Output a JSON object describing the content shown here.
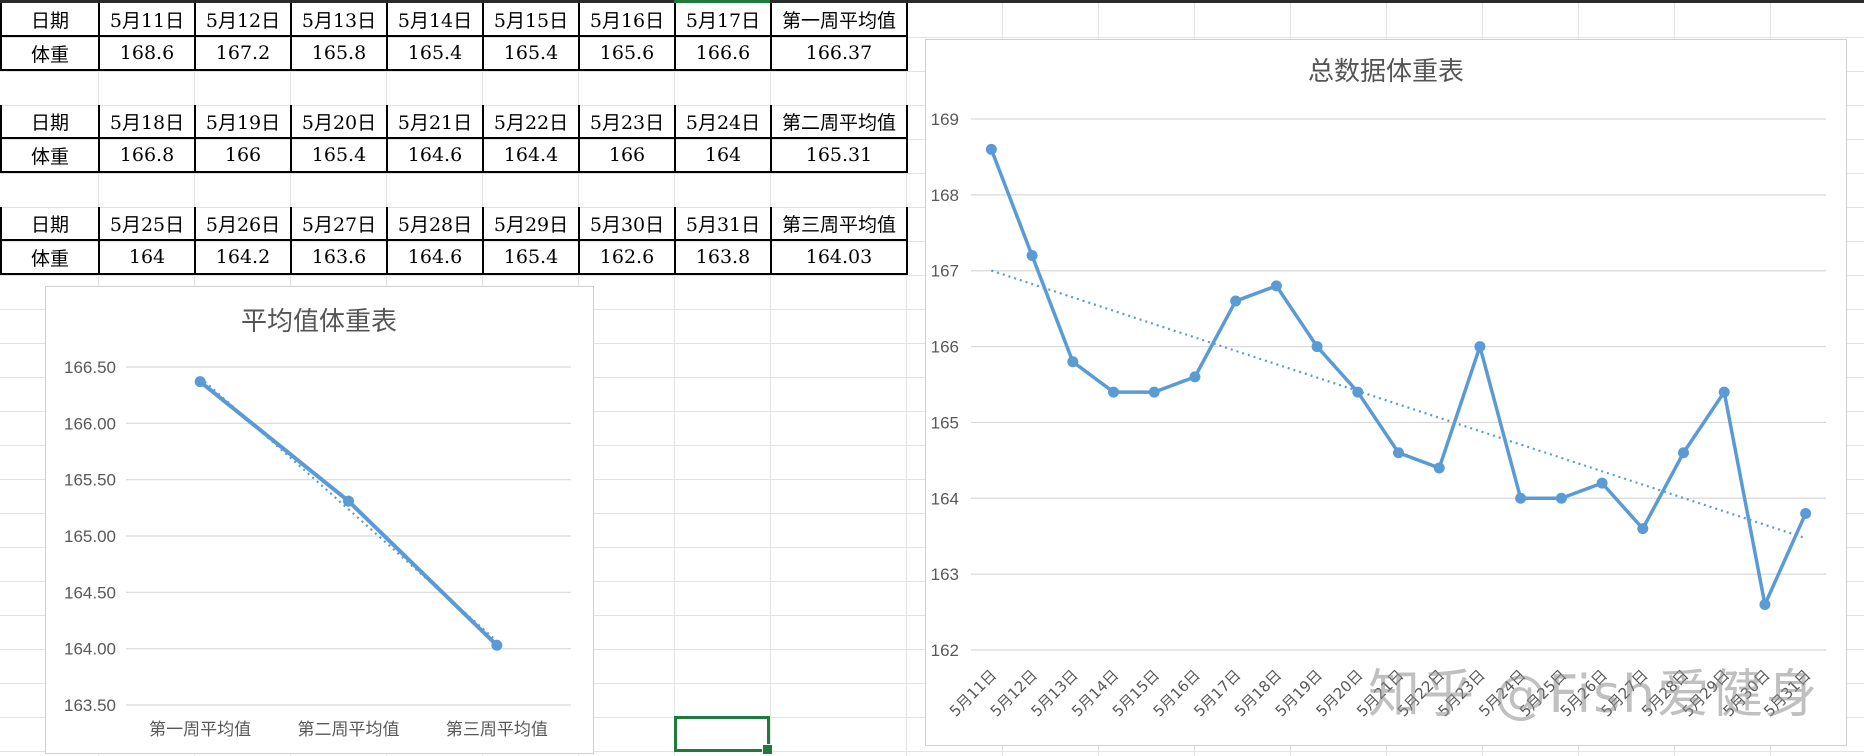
{
  "weeks": [
    {
      "date_label": "日期",
      "weight_label": "体重",
      "dates": [
        "5月11日",
        "5月12日",
        "5月13日",
        "5月14日",
        "5月15日",
        "5月16日",
        "5月17日"
      ],
      "avg_label": "第一周平均值",
      "weights": [
        "168.6",
        "167.2",
        "165.8",
        "165.4",
        "165.4",
        "165.6",
        "166.6"
      ],
      "avg_value": "166.37"
    },
    {
      "date_label": "日期",
      "weight_label": "体重",
      "dates": [
        "5月18日",
        "5月19日",
        "5月20日",
        "5月21日",
        "5月22日",
        "5月23日",
        "5月24日"
      ],
      "avg_label": "第二周平均值",
      "weights": [
        "166.8",
        "166",
        "165.4",
        "164.6",
        "164.4",
        "166",
        "164"
      ],
      "avg_value": "165.31"
    },
    {
      "date_label": "日期",
      "weight_label": "体重",
      "dates": [
        "5月25日",
        "5月26日",
        "5月27日",
        "5月28日",
        "5月29日",
        "5月30日",
        "5月31日"
      ],
      "avg_label": "第三周平均值",
      "weights": [
        "164",
        "164.2",
        "163.6",
        "164.6",
        "165.4",
        "162.6",
        "163.8"
      ],
      "avg_value": "164.03"
    }
  ],
  "chart_data": [
    {
      "type": "line",
      "title": "平均值体重表",
      "categories": [
        "第一周平均值",
        "第二周平均值",
        "第三周平均值"
      ],
      "values": [
        166.37,
        165.31,
        164.03
      ],
      "ylim": [
        163.5,
        166.5
      ],
      "yticks": [
        "163.50",
        "164.00",
        "164.50",
        "165.00",
        "165.50",
        "166.00",
        "166.50"
      ],
      "ytick_values": [
        163.5,
        164.0,
        164.5,
        165.0,
        165.5,
        166.0,
        166.5
      ],
      "trendline": "linear, dotted",
      "grid": true,
      "legend": "none",
      "color": "#5b9bd5"
    },
    {
      "type": "line",
      "title": "总数据体重表",
      "categories": [
        "5月11日",
        "5月12日",
        "5月13日",
        "5月14日",
        "5月15日",
        "5月16日",
        "5月17日",
        "5月18日",
        "5月19日",
        "5月20日",
        "5月21日",
        "5月22日",
        "5月23日",
        "5月24日",
        "5月25日",
        "5月26日",
        "5月27日",
        "5月28日",
        "5月29日",
        "5月30日",
        "5月31日"
      ],
      "values": [
        168.6,
        167.2,
        165.8,
        165.4,
        165.4,
        165.6,
        166.6,
        166.8,
        166,
        165.4,
        164.6,
        164.4,
        166,
        164,
        164,
        164.2,
        163.6,
        164.6,
        165.4,
        162.6,
        163.8
      ],
      "ylim": [
        162,
        169
      ],
      "yticks": [
        "162",
        "163",
        "164",
        "165",
        "166",
        "167",
        "168",
        "169"
      ],
      "ytick_values": [
        162,
        163,
        164,
        165,
        166,
        167,
        168,
        169
      ],
      "trendline": "linear, dotted",
      "grid": true,
      "legend": "none",
      "color": "#5b9bd5"
    }
  ],
  "selection_color": "#1e7b3c",
  "watermark": "知乎 @Fish爱健身"
}
